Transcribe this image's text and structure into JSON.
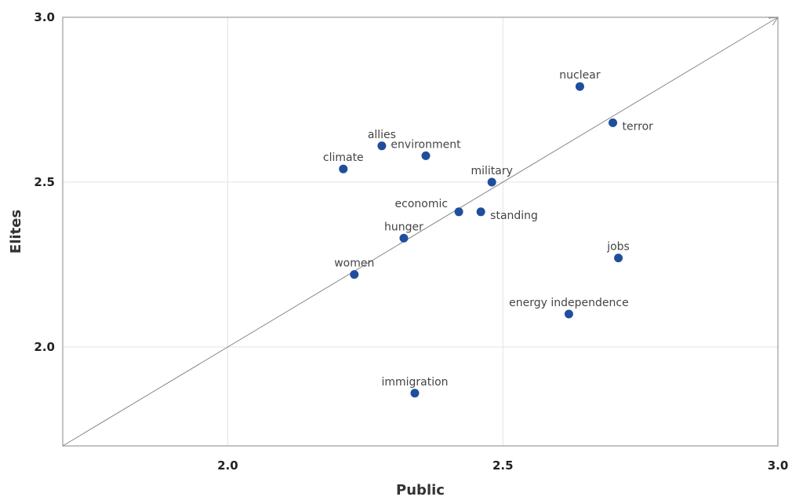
{
  "chart_data": {
    "type": "scatter",
    "xlabel": "Public",
    "ylabel": "Elites",
    "xlim": [
      1.7,
      3.0
    ],
    "ylim": [
      1.7,
      3.0
    ],
    "xticks": [
      2.0,
      2.5,
      3.0
    ],
    "yticks": [
      2.0,
      2.5,
      3.0
    ],
    "xtick_labels": [
      "2.0",
      "2.5",
      "3.0"
    ],
    "ytick_labels": [
      "2.0",
      "2.5",
      "3.0"
    ],
    "grid": true,
    "diagonal_arrow": true,
    "point_color": "#1f4e9c",
    "points": [
      {
        "label": "nuclear",
        "x": 2.64,
        "y": 2.79,
        "label_pos": "above"
      },
      {
        "label": "terror",
        "x": 2.7,
        "y": 2.68,
        "label_pos": "right"
      },
      {
        "label": "allies",
        "x": 2.28,
        "y": 2.61,
        "label_pos": "above"
      },
      {
        "label": "environment",
        "x": 2.36,
        "y": 2.58,
        "label_pos": "above"
      },
      {
        "label": "climate",
        "x": 2.21,
        "y": 2.54,
        "label_pos": "above"
      },
      {
        "label": "military",
        "x": 2.48,
        "y": 2.5,
        "label_pos": "above"
      },
      {
        "label": "economic",
        "x": 2.42,
        "y": 2.41,
        "label_pos": "upper-left"
      },
      {
        "label": "standing",
        "x": 2.46,
        "y": 2.41,
        "label_pos": "right"
      },
      {
        "label": "hunger",
        "x": 2.32,
        "y": 2.33,
        "label_pos": "above"
      },
      {
        "label": "jobs",
        "x": 2.71,
        "y": 2.27,
        "label_pos": "above"
      },
      {
        "label": "women",
        "x": 2.23,
        "y": 2.22,
        "label_pos": "above"
      },
      {
        "label": "energy independence",
        "x": 2.62,
        "y": 2.1,
        "label_pos": "above"
      },
      {
        "label": "immigration",
        "x": 2.34,
        "y": 1.86,
        "label_pos": "above"
      }
    ]
  }
}
